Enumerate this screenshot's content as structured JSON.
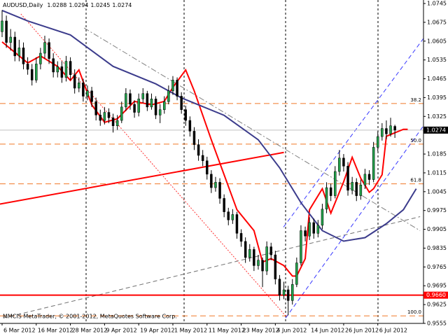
{
  "chart_data": {
    "type": "candlestick",
    "title": "AUDUSD,Daily",
    "footer": "MMCIS MetaTrader, © 2001-2012, MetaQuotes Software Corp.",
    "categories": [
      "6 Mar 2012",
      null,
      null,
      null,
      null,
      null,
      null,
      null,
      "16 Mar 2012",
      null,
      null,
      null,
      null,
      null,
      null,
      null,
      "28 Mar 2012",
      null,
      null,
      null,
      null,
      null,
      null,
      null,
      "9 Apr 2012",
      null,
      null,
      null,
      null,
      null,
      null,
      null,
      "19 Apr 2012",
      null,
      null,
      null,
      null,
      null,
      null,
      null,
      "1 May 2012",
      null,
      null,
      null,
      null,
      null,
      null,
      null,
      "11 May 2012",
      null,
      null,
      null,
      null,
      null,
      null,
      null,
      "23 May 2012",
      null,
      null,
      null,
      null,
      null,
      null,
      null,
      "4 Jun 2012",
      null,
      null,
      null,
      null,
      null,
      null,
      null,
      "14 Jun 2012",
      null,
      null,
      null,
      null,
      null,
      null,
      null,
      "26 Jun 2012",
      null,
      null,
      null,
      null,
      null,
      null,
      null,
      "6 Jul 2012",
      null,
      null,
      null,
      null
    ],
    "open": [
      1.064,
      1.068,
      1.06,
      1.062,
      1.055,
      1.058,
      1.052,
      1.05,
      1.046,
      1.052,
      1.056,
      1.06,
      1.054,
      1.049,
      1.051,
      1.047,
      1.053,
      1.048,
      1.043,
      1.045,
      1.04,
      1.042,
      1.038,
      1.033,
      1.031,
      1.034,
      1.032,
      1.029,
      1.031,
      1.036,
      1.041,
      1.037,
      1.034,
      1.039,
      1.041,
      1.036,
      1.039,
      1.033,
      1.035,
      1.038,
      1.042,
      1.046,
      1.04,
      1.035,
      1.031,
      1.027,
      1.022,
      1.018,
      1.016,
      1.011,
      1.006,
      1.008,
      1.002,
      0.997,
      0.994,
      0.996,
      0.989,
      0.986,
      0.98,
      0.983,
      0.977,
      0.979,
      0.975,
      0.984,
      0.981,
      0.972,
      0.966,
      0.968,
      0.964,
      0.97,
      0.978,
      0.99,
      0.988,
      0.993,
      0.989,
      0.992,
      0.998,
      1.006,
      1.003,
      1.012,
      1.017,
      1.014,
      1.005,
      1.008,
      1.003,
      1.007,
      1.011,
      1.009,
      1.021,
      1.025,
      1.028,
      1.026,
      1.0288
    ],
    "high": [
      1.072,
      1.07,
      1.065,
      1.064,
      1.061,
      1.06,
      1.0545,
      1.052,
      1.0545,
      1.058,
      1.0625,
      1.0615,
      1.056,
      1.053,
      1.053,
      1.055,
      1.0545,
      1.05,
      1.047,
      1.0465,
      1.044,
      1.0435,
      1.0395,
      1.035,
      1.036,
      1.0355,
      1.0335,
      1.033,
      1.038,
      1.043,
      1.0425,
      1.0385,
      1.041,
      1.043,
      1.042,
      1.041,
      1.04,
      1.037,
      1.04,
      1.044,
      1.0475,
      1.047,
      1.0415,
      1.0365,
      1.0325,
      1.0285,
      1.024,
      1.02,
      1.0175,
      1.0125,
      1.01,
      1.0095,
      1.0035,
      0.9985,
      0.998,
      0.997,
      0.9905,
      0.9875,
      0.985,
      0.984,
      0.981,
      0.98,
      0.986,
      0.9855,
      0.9825,
      0.9735,
      0.971,
      0.9695,
      0.972,
      0.98,
      0.992,
      0.9915,
      0.995,
      0.9945,
      0.994,
      1.0,
      1.008,
      1.0075,
      1.014,
      1.02,
      1.0185,
      1.0155,
      1.01,
      1.0095,
      1.009,
      1.013,
      1.0125,
      1.023,
      1.027,
      1.03,
      1.031,
      1.032,
      1.0294
    ],
    "low": [
      1.062,
      1.058,
      1.057,
      1.053,
      1.053,
      1.05,
      1.048,
      1.044,
      1.045,
      1.05,
      1.054,
      1.052,
      1.047,
      1.047,
      1.045,
      1.0455,
      1.046,
      1.041,
      1.0415,
      1.038,
      1.0385,
      1.036,
      1.031,
      1.029,
      1.0295,
      1.03,
      1.0265,
      1.0275,
      1.03,
      1.0345,
      1.035,
      1.032,
      1.0325,
      1.0375,
      1.0345,
      1.035,
      1.0315,
      1.03,
      1.0335,
      1.037,
      1.0405,
      1.0385,
      1.0335,
      1.029,
      1.025,
      1.02,
      1.016,
      1.014,
      1.009,
      1.004,
      1.0045,
      1.0,
      0.995,
      0.992,
      0.9925,
      0.987,
      0.984,
      0.978,
      0.9785,
      0.975,
      0.9755,
      0.969,
      0.9735,
      0.979,
      0.97,
      0.964,
      0.9645,
      0.9585,
      0.9625,
      0.969,
      0.977,
      0.986,
      0.9865,
      0.987,
      0.9875,
      0.9905,
      0.9965,
      1.001,
      1.002,
      1.0105,
      1.012,
      1.003,
      1.0035,
      1.001,
      1.0015,
      1.0055,
      1.007,
      1.008,
      1.0195,
      1.0235,
      1.024,
      1.025,
      1.0245
    ],
    "close": [
      1.068,
      1.06,
      1.062,
      1.055,
      1.058,
      1.052,
      1.05,
      1.046,
      1.052,
      1.056,
      1.06,
      1.054,
      1.049,
      1.051,
      1.047,
      1.053,
      1.048,
      1.043,
      1.045,
      1.04,
      1.042,
      1.038,
      1.033,
      1.031,
      1.034,
      1.032,
      1.029,
      1.031,
      1.036,
      1.041,
      1.037,
      1.034,
      1.039,
      1.041,
      1.036,
      1.039,
      1.033,
      1.035,
      1.038,
      1.042,
      1.046,
      1.04,
      1.035,
      1.031,
      1.027,
      1.022,
      1.018,
      1.016,
      1.011,
      1.006,
      1.008,
      1.002,
      0.997,
      0.994,
      0.996,
      0.989,
      0.986,
      0.98,
      0.983,
      0.977,
      0.979,
      0.975,
      0.984,
      0.981,
      0.972,
      0.966,
      0.968,
      0.964,
      0.97,
      0.978,
      0.99,
      0.988,
      0.993,
      0.989,
      0.992,
      0.998,
      1.006,
      1.003,
      1.012,
      1.017,
      1.014,
      1.005,
      1.008,
      1.003,
      1.007,
      1.011,
      1.009,
      1.021,
      1.025,
      1.028,
      1.026,
      1.029,
      1.0274
    ],
    "up_color": "#22a04a",
    "down_color": "#000000",
    "xlim": [
      -0.49,
      98.7
    ],
    "ylim": [
      0.9555,
      1.0758
    ],
    "yticks": [
      1.0745,
      1.0675,
      1.0605,
      1.0535,
      1.0465,
      1.0395,
      1.0325,
      1.0185,
      1.0115,
      1.0045,
      0.9975,
      0.9905,
      0.9835,
      0.9765,
      0.9695,
      0.9625,
      0.9555
    ],
    "grid": false,
    "moving_averages": [
      {
        "color": "#ff0000",
        "x": [
          0,
          6,
          9,
          13,
          16,
          18,
          21,
          24,
          27,
          31,
          35,
          38,
          40,
          43,
          45,
          49,
          52,
          55,
          59,
          61,
          63,
          66,
          68,
          69,
          71,
          72,
          75,
          77,
          80,
          82,
          84,
          86,
          87,
          89,
          90,
          92,
          94,
          95
        ],
        "values": [
          1.0602,
          1.0524,
          1.055,
          1.0511,
          1.0459,
          1.0498,
          1.0368,
          1.0303,
          1.0316,
          1.0381,
          1.0368,
          1.0381,
          1.0433,
          1.0498,
          1.042,
          1.0238,
          1.0108,
          0.9978,
          0.99,
          0.9783,
          0.9796,
          0.977,
          0.9731,
          0.9731,
          0.9796,
          0.9978,
          1.0056,
          0.9965,
          1.0082,
          1.0173,
          1.0095,
          1.0043,
          1.0056,
          1.0108,
          1.0251,
          1.0264,
          1.0277,
          1.0277
        ]
      },
      {
        "color": "#3c3c8c",
        "x": [
          0,
          6,
          16,
          26,
          36,
          42,
          52,
          60,
          65,
          70,
          75,
          80,
          85,
          90,
          94,
          97
        ],
        "values": [
          1.0719,
          1.068,
          1.0628,
          1.0511,
          1.0446,
          1.0394,
          1.0329,
          1.0238,
          1.0134,
          1.0004,
          0.99,
          0.9861,
          0.9874,
          0.9926,
          0.9978,
          1.0056
        ]
      }
    ],
    "trendlines": [
      {
        "color": "#ff0000",
        "style": "solid",
        "x": [
          -0.5,
          66
        ],
        "values": [
          0.9999,
          1.0191
        ]
      },
      {
        "color": "#808080",
        "style": "dashdot",
        "x": [
          19.2,
          97.9
        ],
        "values": [
          1.0654,
          0.99
        ]
      },
      {
        "color": "#ff3030",
        "style": "dot",
        "x": [
          4.4,
          66.4
        ],
        "values": [
          1.0706,
          0.9583
        ]
      },
      {
        "color": "#707070",
        "style": "dash",
        "x": [
          0.3,
          97.9
        ],
        "values": [
          0.9575,
          0.9952
        ]
      },
      {
        "color": "#3a3aff",
        "style": "dash",
        "x": [
          65.9,
          98.7
        ],
        "values": [
          0.9913,
          1.0615
        ]
      },
      {
        "color": "#3a3aff",
        "style": "dash",
        "x": [
          66.4,
          98.7
        ],
        "values": [
          0.9575,
          1.029
        ]
      }
    ],
    "fib": {
      "color": "#f07828",
      "labels": [
        "38.2",
        "50.0",
        "61.8",
        "100.0"
      ],
      "values": [
        1.0373,
        1.0222,
        1.0074,
        0.9583
      ]
    },
    "hline": {
      "value": 0.966,
      "label": "0.9660",
      "color": "#ff0000"
    },
    "price_line_color": "#c0c0c0"
  }
}
